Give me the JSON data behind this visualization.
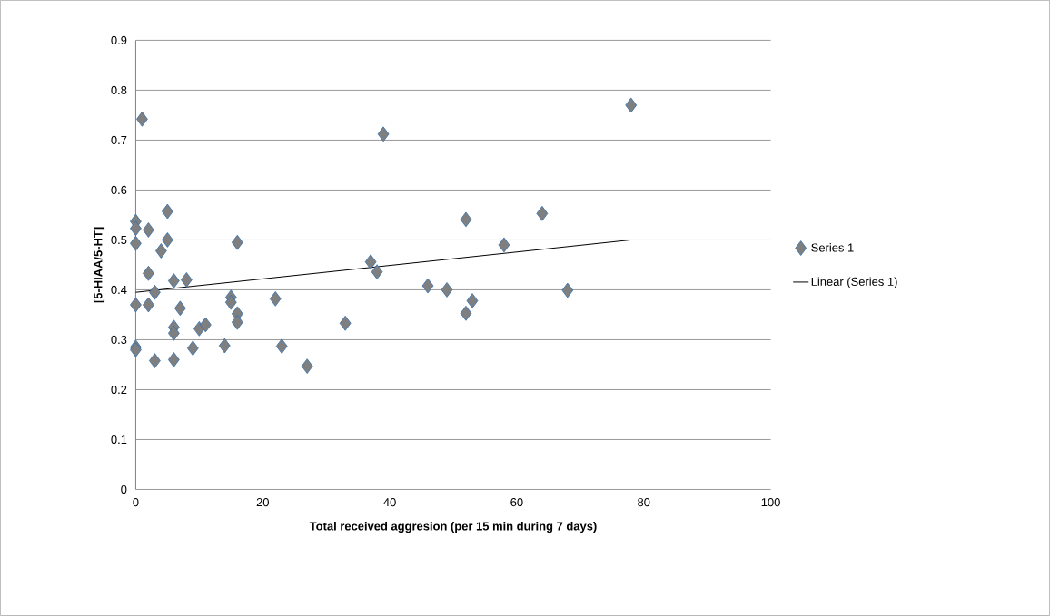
{
  "chart_data": {
    "type": "scatter",
    "xlabel": "Total received aggresion (per 15 min during 7 days)",
    "ylabel": "[5-HIAA/5-HT]",
    "xlim": [
      0,
      100
    ],
    "xticks": [
      0,
      20,
      40,
      60,
      80,
      100
    ],
    "ylim": [
      0,
      0.9
    ],
    "yticks": [
      0,
      0.1,
      0.2,
      0.3,
      0.4,
      0.5,
      0.6,
      0.7,
      0.8,
      0.9
    ],
    "grid": "y",
    "legend": "right",
    "marker": "diamond",
    "series": [
      {
        "name": "Series 1",
        "color": "#7f7f7f",
        "x": [
          0,
          0,
          0,
          0,
          0,
          0,
          1,
          2,
          2,
          2,
          3,
          3,
          4,
          5,
          5,
          6,
          6,
          6,
          6,
          7,
          8,
          9,
          10,
          11,
          14,
          15,
          15,
          16,
          16,
          16,
          22,
          23,
          27,
          33,
          37,
          38,
          39,
          46,
          49,
          52,
          52,
          53,
          58,
          64,
          68,
          78
        ],
        "values": [
          0.537,
          0.523,
          0.493,
          0.37,
          0.285,
          0.28,
          0.742,
          0.52,
          0.433,
          0.37,
          0.395,
          0.258,
          0.478,
          0.557,
          0.5,
          0.418,
          0.325,
          0.313,
          0.26,
          0.363,
          0.42,
          0.283,
          0.322,
          0.33,
          0.288,
          0.385,
          0.375,
          0.495,
          0.352,
          0.335,
          0.382,
          0.287,
          0.247,
          0.333,
          0.456,
          0.436,
          0.712,
          0.408,
          0.4,
          0.541,
          0.353,
          0.378,
          0.49,
          0.553,
          0.399,
          0.77
        ]
      },
      {
        "name": "Linear (Series 1)",
        "type": "line",
        "color": "#000000",
        "marker": "none",
        "line_style": "solid",
        "x": [
          0,
          78
        ],
        "values": [
          0.395,
          0.5
        ]
      }
    ]
  }
}
